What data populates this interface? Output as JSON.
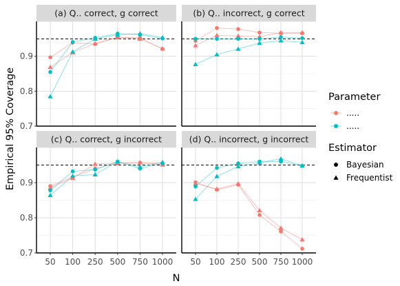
{
  "chart_data": {
    "type": "line",
    "ylabel": "Empirical 95% Coverage",
    "xlabel": "N",
    "categories": [
      "50",
      "100",
      "250",
      "500",
      "750",
      "1000"
    ],
    "ylim": [
      0.7,
      1.0
    ],
    "yticks": [
      0.7,
      0.8,
      0.9
    ],
    "reference_line": 0.95,
    "grid": true,
    "legend_position": "right",
    "colors": {
      "param_1": "#F8766D",
      "param_2": "#00BFC4"
    },
    "legend": {
      "parameter_title": "Parameter",
      "parameter_items": [
        {
          "label": ".....",
          "color": "#F8766D"
        },
        {
          "label": ".....",
          "color": "#00BFC4"
        }
      ],
      "estimator_title": "Estimator",
      "estimator_items": [
        {
          "label": "Bayesian",
          "shape": "circle"
        },
        {
          "label": "Frequentist",
          "shape": "triangle"
        }
      ]
    },
    "panels": [
      {
        "title": "(a) Q.. correct, g correct",
        "series": [
          {
            "param": "param_1",
            "estimator": "Bayesian",
            "values": [
              0.897,
              0.939,
              0.935,
              0.954,
              0.953,
              0.921
            ]
          },
          {
            "param": "param_1",
            "estimator": "Frequentist",
            "values": [
              0.869,
              0.911,
              0.937,
              0.955,
              0.95,
              0.922
            ]
          },
          {
            "param": "param_2",
            "estimator": "Bayesian",
            "values": [
              0.855,
              0.941,
              0.953,
              0.965,
              0.962,
              0.951
            ]
          },
          {
            "param": "param_2",
            "estimator": "Frequentist",
            "values": [
              0.785,
              0.913,
              0.95,
              0.962,
              0.965,
              0.954
            ]
          }
        ]
      },
      {
        "title": "(b) Q.. incorrect, g correct",
        "series": [
          {
            "param": "param_1",
            "estimator": "Bayesian",
            "values": [
              0.944,
              0.981,
              0.978,
              0.968,
              0.966,
              0.966
            ]
          },
          {
            "param": "param_1",
            "estimator": "Frequentist",
            "values": [
              0.931,
              0.96,
              0.958,
              0.956,
              0.968,
              0.968
            ]
          },
          {
            "param": "param_2",
            "estimator": "Bayesian",
            "values": [
              0.95,
              0.95,
              0.95,
              0.95,
              0.955,
              0.952
            ]
          },
          {
            "param": "param_2",
            "estimator": "Frequentist",
            "values": [
              0.877,
              0.905,
              0.921,
              0.938,
              0.945,
              0.94
            ]
          }
        ]
      },
      {
        "title": "(c) Q.. correct, g incorrect",
        "series": [
          {
            "param": "param_1",
            "estimator": "Bayesian",
            "values": [
              0.89,
              0.916,
              0.94,
              0.955,
              0.957,
              0.955
            ]
          },
          {
            "param": "param_1",
            "estimator": "Frequentist",
            "values": [
              0.885,
              0.913,
              0.953,
              0.956,
              0.957,
              0.951
            ]
          },
          {
            "param": "param_2",
            "estimator": "Bayesian",
            "values": [
              0.878,
              0.932,
              0.937,
              0.96,
              0.94,
              0.955
            ]
          },
          {
            "param": "param_2",
            "estimator": "Frequentist",
            "values": [
              0.864,
              0.919,
              0.923,
              0.96,
              0.945,
              0.958
            ]
          }
        ]
      },
      {
        "title": "(d) Q.. incorrect, g incorrect",
        "series": [
          {
            "param": "param_1",
            "estimator": "Bayesian",
            "values": [
              0.901,
              0.88,
              0.894,
              0.808,
              0.761,
              0.712
            ]
          },
          {
            "param": "param_1",
            "estimator": "Frequentist",
            "values": [
              0.897,
              0.882,
              0.897,
              0.821,
              0.771,
              0.738
            ]
          },
          {
            "param": "param_2",
            "estimator": "Bayesian",
            "values": [
              0.889,
              0.942,
              0.955,
              0.96,
              0.96,
              0.948
            ]
          },
          {
            "param": "param_2",
            "estimator": "Frequentist",
            "values": [
              0.853,
              0.918,
              0.946,
              0.957,
              0.968,
              0.948
            ]
          }
        ]
      }
    ]
  }
}
